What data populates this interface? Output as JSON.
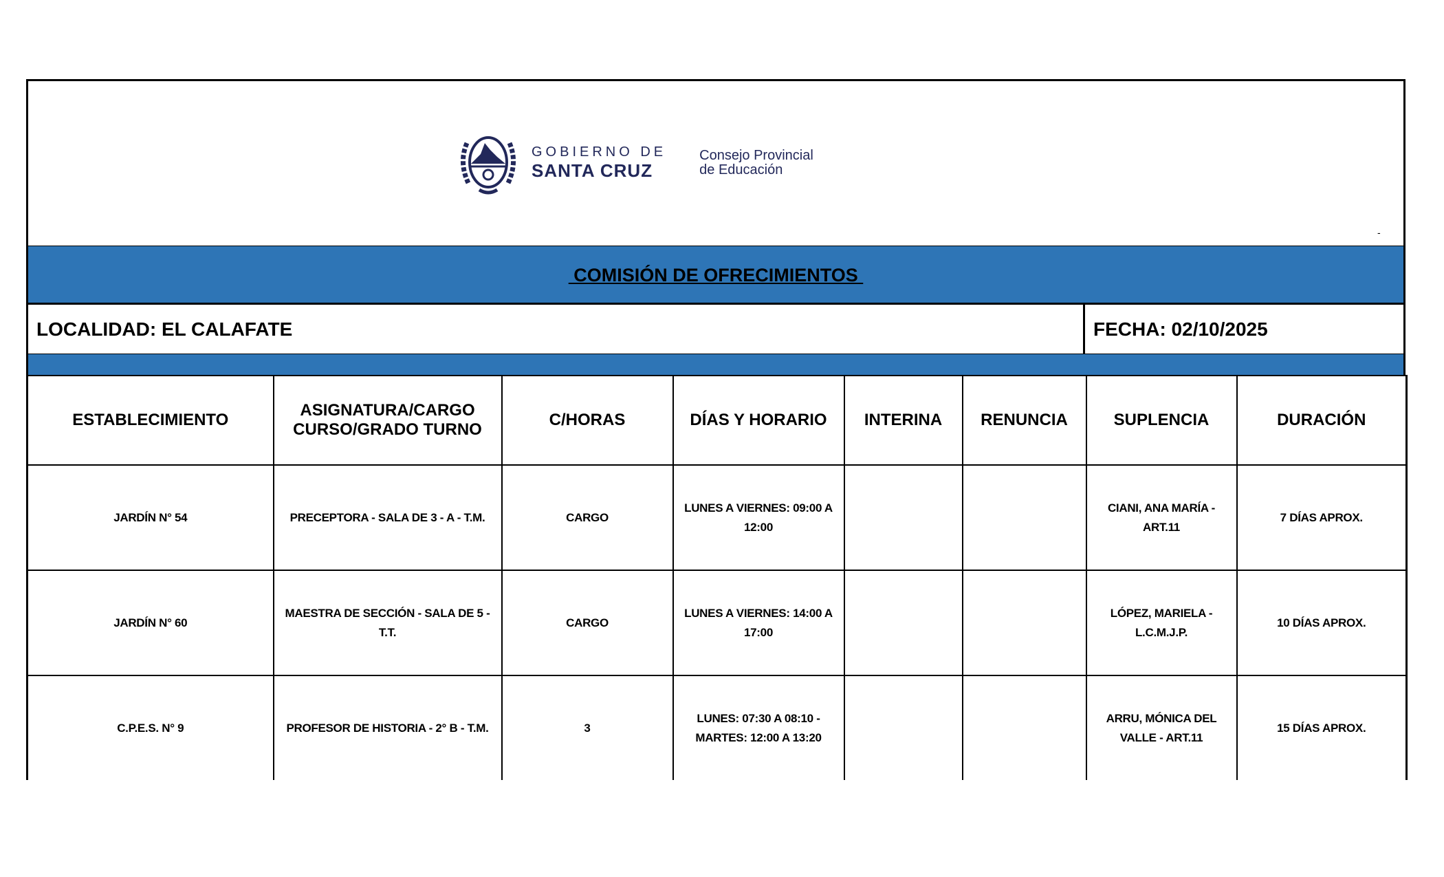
{
  "header": {
    "logo": {
      "line1": "GOBIERNO DE",
      "line2": "SANTA CRUZ",
      "org_line1": "Consejo Provincial",
      "org_line2": "de Educación"
    },
    "corner_mark": "-",
    "title": " COMISIÓN DE OFRECIMIENTOS ",
    "localidad": "LOCALIDAD: EL CALAFATE",
    "fecha": "FECHA: 02/10/2025"
  },
  "colors": {
    "band": "#2e75b6",
    "logo": "#22285a"
  },
  "table": {
    "columns": [
      "ESTABLECIMIENTO",
      "ASIGNATURA/CARGO CURSO/GRADO  TURNO",
      "C/HORAS",
      "DÍAS Y HORARIO",
      "INTERINA",
      "RENUNCIA",
      "SUPLENCIA",
      "DURACIÓN"
    ],
    "rows": [
      [
        "JARDÍN N° 54",
        "PRECEPTORA - SALA DE 3 - A - T.M.",
        "CARGO",
        "LUNES A VIERNES: 09:00 A 12:00",
        "",
        "",
        "CIANI, ANA MARÍA - ART.11",
        "7 DÍAS APROX."
      ],
      [
        "JARDÍN N° 60",
        "MAESTRA DE SECCIÓN - SALA DE 5 - T.T.",
        "CARGO",
        "LUNES A VIERNES: 14:00 A 17:00",
        "",
        "",
        "LÓPEZ, MARIELA - L.C.M.J.P.",
        "10 DÍAS APROX."
      ],
      [
        "C.P.E.S. N° 9",
        "PROFESOR DE HISTORIA - 2° B - T.M.",
        "3",
        "LUNES: 07:30 A 08:10 - MARTES: 12:00 A 13:20",
        "",
        "",
        "ARRU, MÓNICA DEL VALLE - ART.11",
        "15 DÍAS APROX."
      ]
    ]
  }
}
